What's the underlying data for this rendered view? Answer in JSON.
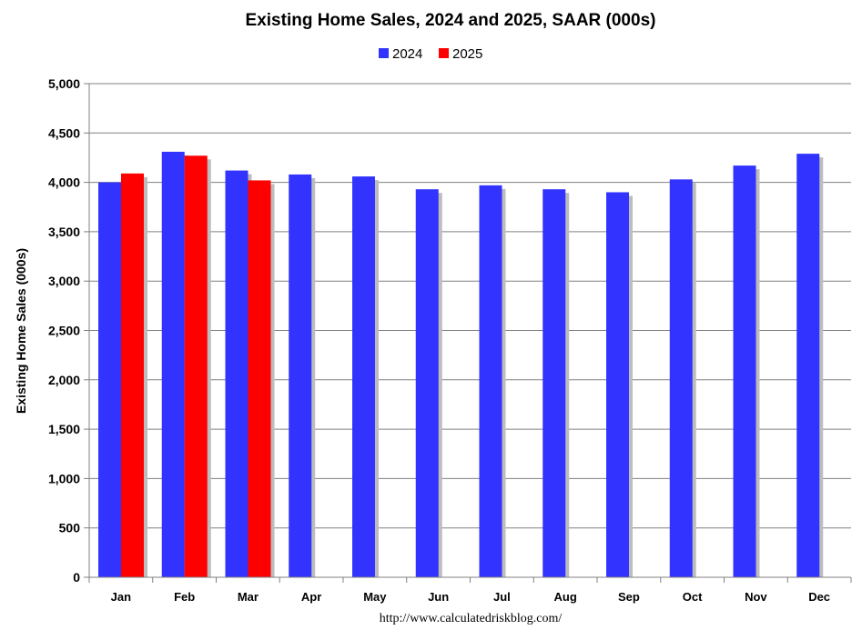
{
  "chart_data": {
    "type": "bar",
    "title": "Existing Home Sales,  2024 and 2025, SAAR (000s)",
    "ylabel": "Existing Home Sales (000s)",
    "xlabel": "",
    "source": "http://www.calculatedriskblog.com/",
    "categories": [
      "Jan",
      "Feb",
      "Mar",
      "Apr",
      "May",
      "Jun",
      "Jul",
      "Aug",
      "Sep",
      "Oct",
      "Nov",
      "Dec"
    ],
    "series": [
      {
        "name": "2024",
        "color": "#3333ff",
        "values": [
          4000,
          4310,
          4120,
          4080,
          4060,
          3930,
          3970,
          3930,
          3900,
          4030,
          4170,
          4290
        ]
      },
      {
        "name": "2025",
        "color": "#ff0000",
        "values": [
          4090,
          4270,
          4020,
          null,
          null,
          null,
          null,
          null,
          null,
          null,
          null,
          null
        ]
      }
    ],
    "ylim": [
      0,
      5000
    ],
    "yticks": [
      0,
      500,
      1000,
      1500,
      2000,
      2500,
      3000,
      3500,
      4000,
      4500,
      5000
    ],
    "ytick_labels": [
      "0",
      "500",
      "1,000",
      "1,500",
      "2,000",
      "2,500",
      "3,000",
      "3,500",
      "4,000",
      "4,500",
      "5,000"
    ],
    "grid": true,
    "legend_position": "top-center"
  }
}
